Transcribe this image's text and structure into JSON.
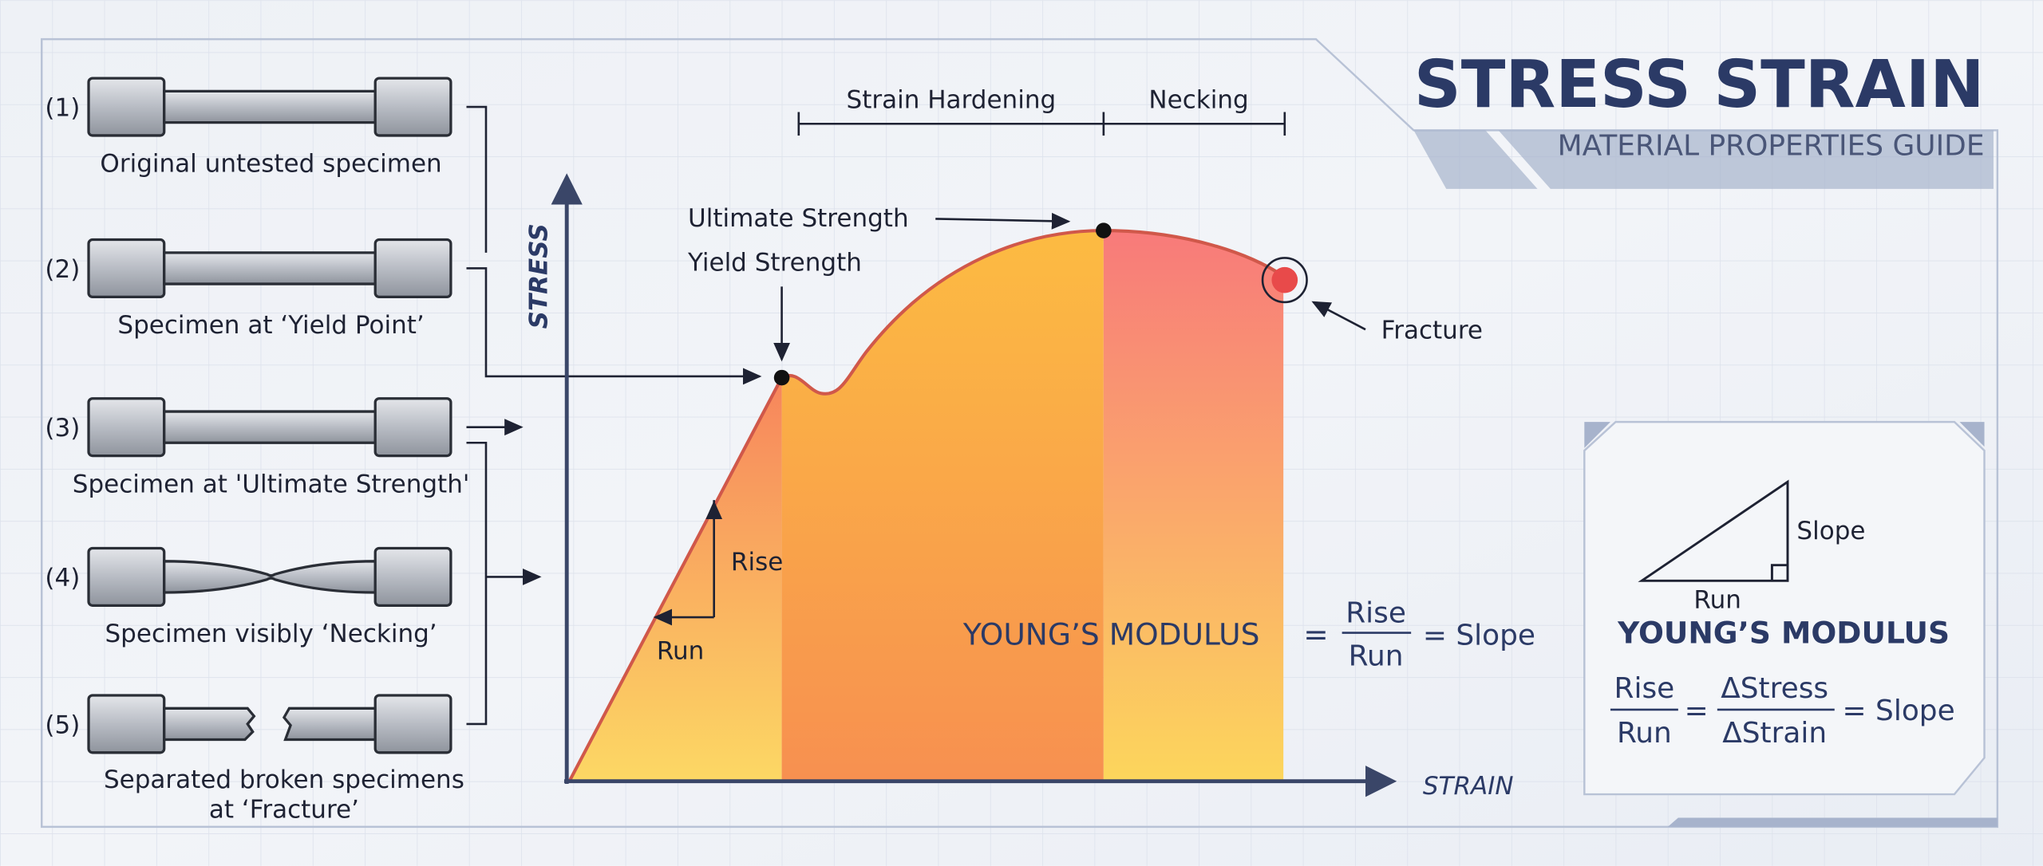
{
  "header": {
    "title": "STRESS STRAIN",
    "subtitle": "MATERIAL PROPERTIES GUIDE"
  },
  "specimens": [
    {
      "number": "(1)",
      "label": "Original untested specimen"
    },
    {
      "number": "(2)",
      "label": "Specimen at ‘Yield Point’"
    },
    {
      "number": "(3)",
      "label": "Specimen at 'Ultimate Strength'"
    },
    {
      "number": "(4)",
      "label": "Specimen visibly ‘Necking’"
    },
    {
      "number": "(5)",
      "label": [
        "Separated broken specimens",
        "at ‘Fracture’"
      ]
    }
  ],
  "chart": {
    "axis_y": "STRESS",
    "axis_x": "STRAIN",
    "regions": [
      "Strain Hardening",
      "Necking"
    ],
    "annotations": {
      "ultimate": "Ultimate Strength",
      "yield": "Yield Strength",
      "fracture": "Fracture",
      "rise": "Rise",
      "run": "Run"
    },
    "formula": {
      "label": "YOUNG’S MODULUS",
      "equals": "=",
      "numerator": "Rise",
      "denominator": "Run",
      "result": "= Slope"
    }
  },
  "panel": {
    "slope": "Slope",
    "run": "Run",
    "title": "YOUNG’S MODULUS",
    "numerator": "Rise",
    "denominator": "Run",
    "equals": "=",
    "numerator2": "ΔStress",
    "denominator2": "ΔStrain",
    "result": "= Slope"
  }
}
